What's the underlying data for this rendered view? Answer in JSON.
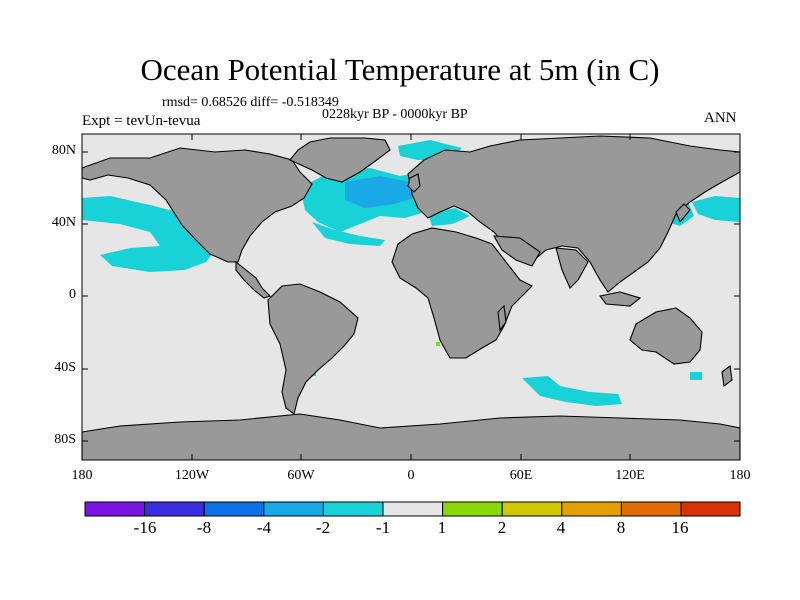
{
  "title": "Ocean Potential Temperature at 5m (in C)",
  "stats": "rmsd= 0.68526 diff= -0.518349",
  "period": "0228kyr BP - 0000kyr BP",
  "expt": "Expt = tevUn-tevua",
  "season": "ANN",
  "axes": {
    "y_labels": [
      "80N",
      "40N",
      "0",
      "40S",
      "80S"
    ],
    "x_labels": [
      "180",
      "120W",
      "60W",
      "0",
      "60E",
      "120E",
      "180"
    ]
  },
  "colorbar": {
    "labels": [
      "-16",
      "-8",
      "-4",
      "-2",
      "-1",
      "1",
      "2",
      "4",
      "8",
      "16"
    ],
    "colors": [
      "#7a14e0",
      "#3a2ee0",
      "#0b72e6",
      "#1aa8e6",
      "#18d2d8",
      "#e6e6e6",
      "#88d80a",
      "#d2c800",
      "#e2a006",
      "#e06c06",
      "#d83206"
    ]
  },
  "map_colors": {
    "land": "#999999",
    "ocean_neutral": "#e6e6e6",
    "anomaly_cyan": "#18d2d8",
    "anomaly_blue": "#1aa8e6"
  }
}
